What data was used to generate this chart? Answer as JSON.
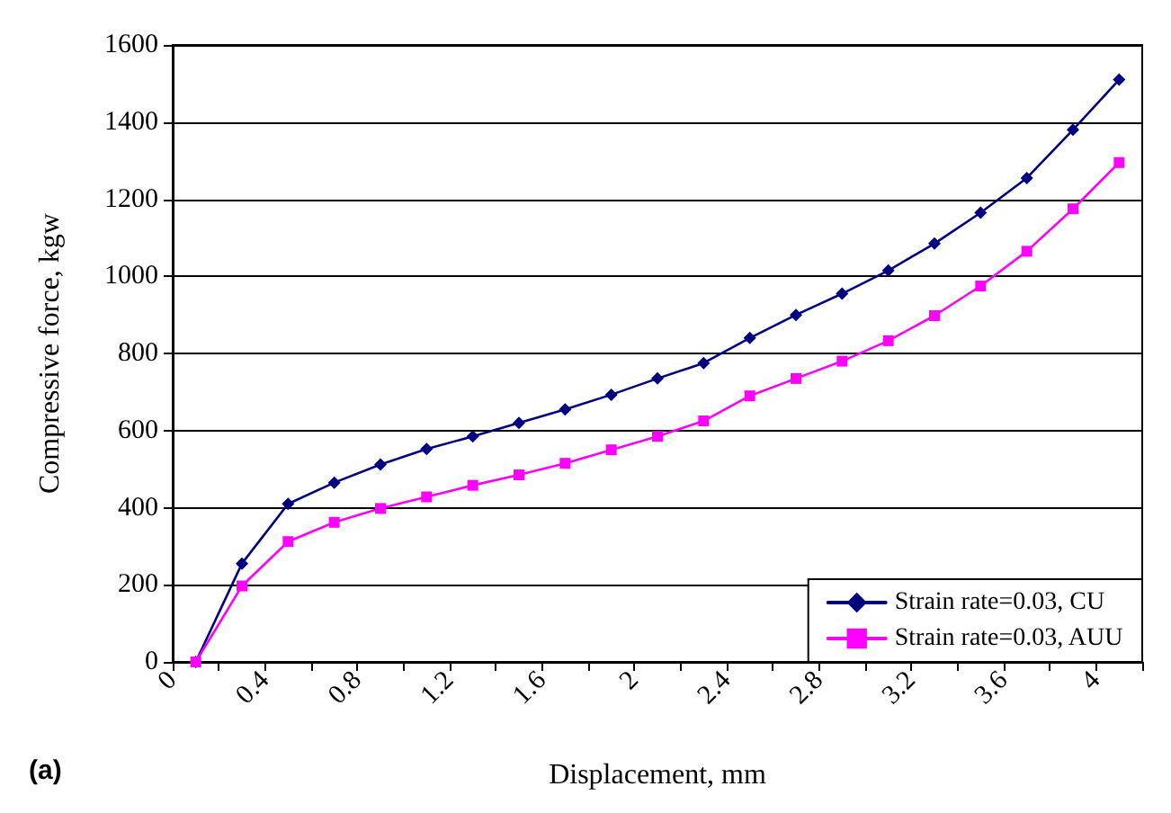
{
  "chart_data": {
    "type": "line",
    "xlabel": "Displacement, mm",
    "ylabel": "Compressive force, kgw",
    "x": [
      0.1,
      0.3,
      0.5,
      0.7,
      0.9,
      1.1,
      1.3,
      1.5,
      1.7,
      1.9,
      2.1,
      2.3,
      2.5,
      2.7,
      2.9,
      3.1,
      3.3,
      3.5,
      3.7,
      3.9,
      4.1
    ],
    "series": [
      {
        "name": "Strain rate=0.03, CU",
        "color": "#000080",
        "marker": "diamond",
        "values": [
          0,
          255,
          410,
          465,
          512,
          552,
          585,
          620,
          655,
          693,
          735,
          775,
          840,
          900,
          955,
          1015,
          1085,
          1165,
          1255,
          1380,
          1510
        ]
      },
      {
        "name": "Strain rate=0.03, AUU",
        "color": "#ff00ff",
        "marker": "square",
        "values": [
          0,
          197,
          312,
          362,
          398,
          428,
          458,
          485,
          515,
          550,
          585,
          625,
          690,
          735,
          780,
          833,
          898,
          975,
          1065,
          1175,
          1295
        ]
      }
    ],
    "xlim": [
      0,
      4.2
    ],
    "xticks": [
      0,
      {
        "value": 0.2,
        "label": null
      },
      0.4,
      {
        "value": 0.6,
        "label": null
      },
      0.8,
      {
        "value": 1.0,
        "label": null
      },
      1.2,
      {
        "value": 1.4,
        "label": null
      },
      1.6,
      {
        "value": 1.8,
        "label": null
      },
      2,
      {
        "value": 2.2,
        "label": null
      },
      2.4,
      {
        "value": 2.6,
        "label": null
      },
      2.8,
      {
        "value": 3.0,
        "label": null
      },
      3.2,
      {
        "value": 3.4,
        "label": null
      },
      3.6,
      {
        "value": 3.8,
        "label": null
      },
      4,
      {
        "value": 4.2,
        "label": null
      }
    ],
    "ylim": [
      0,
      1600
    ],
    "yticks": [
      0,
      200,
      400,
      600,
      800,
      1000,
      1200,
      1400,
      1600
    ],
    "grid": "y",
    "legend": "bottom right",
    "line_style": "solid",
    "annotations": [
      "(a)"
    ]
  }
}
